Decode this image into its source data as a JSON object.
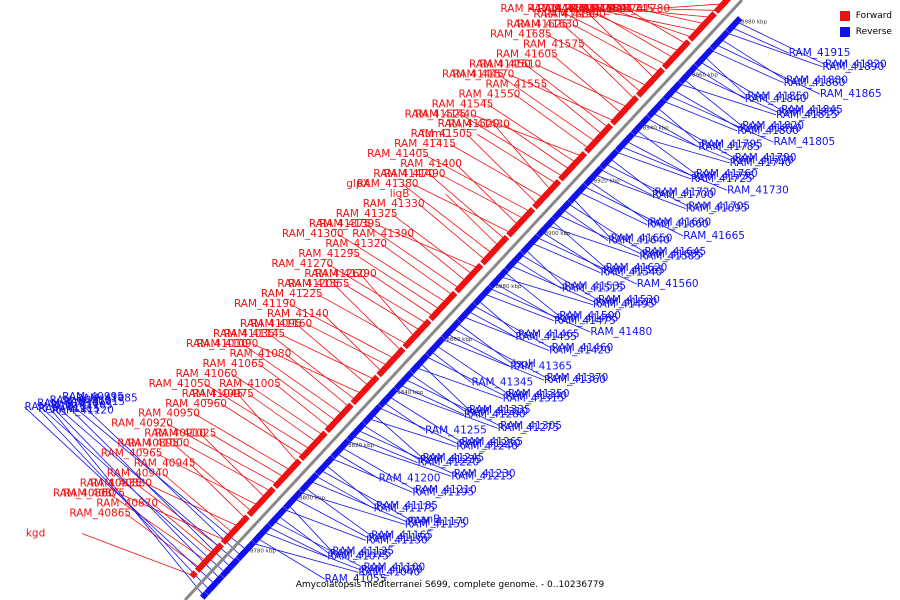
{
  "caption": "Amycolatopsis mediterranei S699, complete genome. - 0..10236779",
  "legend": [
    {
      "label": "Forward",
      "color": "#ee1111"
    },
    {
      "label": "Reverse",
      "color": "#1111ee"
    }
  ],
  "colors": {
    "forward": "#ee1111",
    "reverse": "#1111ee",
    "axis": "#888888"
  },
  "ticks": [
    "8760 kbp",
    "8780 kbp",
    "8800 kbp",
    "8820 kbp",
    "8840 kbp",
    "8860 kbp",
    "8880 kbp",
    "8900 kbp",
    "8920 kbp",
    "8940 kbp",
    "8960 kbp",
    "8980 kbp"
  ],
  "forward_labels": [
    "kgd",
    "RAM_40865",
    "RAM_40860",
    "RAM_40870",
    "RAM_40935",
    "RAM_40875",
    "RAM_40940",
    "RAM_40880",
    "RAM_40945",
    "RAM_40895",
    "RAM_40965",
    "RAM_40910",
    "RAM_41000",
    "RAM_40920",
    "RAM_41025",
    "RAM_40950",
    "RAM_41045",
    "RAM_40960",
    "RAM_41050",
    "RAM_40975",
    "RAM_41060",
    "RAM_41005",
    "RAM_41065",
    "RAM_41010",
    "RAM_41080",
    "RAM_41035",
    "RAM_41090",
    "RAM_41095",
    "RAM_41145",
    "RAM_41140",
    "RAM_41160",
    "RAM_41190",
    "RAM_41205",
    "RAM_41225",
    "RAM_41260",
    "RAM_41355",
    "RAM_41270",
    "RAM_41290",
    "RAM_41295",
    "RAM_41300",
    "RAM_41320",
    "RAM_41375",
    "RAM_41390",
    "RAM_41325",
    "RAM_41395",
    "RAM_41330",
    "glpX",
    "ligB",
    "RAM_41470",
    "RAM_41380",
    "RAM_41400",
    "RAM_41490",
    "RAM_41405",
    "RAM_41505",
    "RAM_41415",
    "RAM_41520",
    "fumC",
    "RAM_41525",
    "RAM_41430",
    "RAM_41545",
    "RAM_41440",
    "RAM_41550",
    "RAM_41445",
    "RAM_41555",
    "RAM_41450",
    "RAM_41570",
    "RAM_41605",
    "RAM_41610",
    "RAM_41575",
    "RAM_41625",
    "RAM_41685",
    "RAM_41580",
    "RAM_41630",
    "RAM_41715",
    "RAM_41590",
    "RAM_41655",
    "RAM_41595",
    "RAM_41670",
    "RAM_41600",
    "RAM_41675",
    "RAM_41680",
    "RAM_41780",
    "RAM_41745"
  ],
  "reverse_labels": [
    "RAM_41120",
    "RAM_41115",
    "RAM_41110",
    "RAM_41105",
    "RAM_41030",
    "RAM_41015",
    "RAM_40980",
    "RAM_41085",
    "RAM_40995",
    "RAM_41040",
    "RAM_41055",
    "RAM_41070",
    "RAM_41075",
    "RAM_41100",
    "RAM_41125",
    "RAM_41130",
    "RAM_41135",
    "RAM_41150",
    "RAM_41155",
    "RAM_41165",
    "RAM_41170",
    "RAM_41175",
    "manB",
    "RAM_41185",
    "RAM_41195",
    "RAM_41200",
    "RAM_41210",
    "RAM_41215",
    "RAM_41220",
    "RAM_41230",
    "RAM_41235",
    "RAM_41240",
    "RAM_41245",
    "RAM_41250",
    "RAM_41255",
    "RAM_41265",
    "RAM_41275",
    "RAM_41280",
    "RAM_41305",
    "RAM_41310",
    "RAM_41315",
    "RAM_41335",
    "RAM_41340",
    "RAM_41345",
    "RAM_41350",
    "RAM_41360",
    "RAM_41365",
    "RAM_41370",
    "ispH",
    "RAM_41420",
    "RAM_41455",
    "RAM_41460",
    "RAM_41465",
    "RAM_41475",
    "RAM_41480",
    "RAM_41485",
    "RAM_41495",
    "RAM_41500",
    "RAM_41510",
    "RAM_41515",
    "RAM_41530",
    "RAM_41535",
    "RAM_41540",
    "RAM_41560",
    "RAM_41565",
    "RAM_41585",
    "RAM_41620",
    "RAM_41635",
    "RAM_41640",
    "RAM_41645",
    "RAM_41650",
    "RAM_41660",
    "RAM_41665",
    "RAM_41690",
    "RAM_41695",
    "RAM_41700",
    "RAM_41705",
    "RAM_41720",
    "RAM_41725",
    "RAM_41730",
    "RAM_41735",
    "RAM_41740",
    "RAM_41760",
    "RAM_41770",
    "RAM_41785",
    "RAM_41790",
    "RAM_41795",
    "RAM_41800",
    "RAM_41805",
    "RAM_41810",
    "RAM_41815",
    "RAM_41820",
    "RAM_41835",
    "RAM_41840",
    "RAM_41845",
    "RAM_41850",
    "RAM_41860",
    "RAM_41865",
    "RAM_41880",
    "RAM_41890",
    "RAM_41915",
    "RAM_41920"
  ]
}
